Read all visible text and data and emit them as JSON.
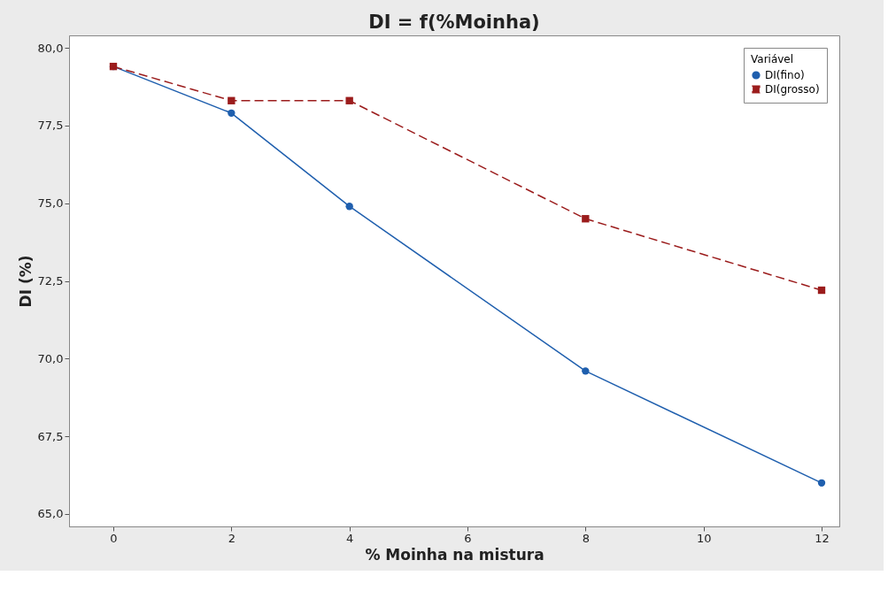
{
  "chart_data": {
    "type": "line",
    "title": "DI = f(%Moinha)",
    "xlabel": "% Moinha na mistura",
    "ylabel": "DI (%)",
    "legend_title": "Variável",
    "x": [
      0,
      2,
      4,
      8,
      12
    ],
    "series": [
      {
        "name": "DI(fino)",
        "color": "#1f5fae",
        "values": [
          79.4,
          77.9,
          74.9,
          69.6,
          66.0
        ],
        "marker": "circle",
        "line_style": "solid"
      },
      {
        "name": "DI(grosso)",
        "color": "#9b1c1c",
        "values": [
          79.4,
          78.3,
          78.3,
          74.5,
          72.2
        ],
        "marker": "square",
        "line_style": "dashed"
      }
    ],
    "xlim": [
      -0.75,
      12.3
    ],
    "xticks": [
      0,
      2,
      4,
      6,
      8,
      10,
      12
    ],
    "ylim": [
      64.6,
      80.4
    ],
    "yticks": [
      {
        "value": 65,
        "label": "65,0"
      },
      {
        "value": 67.5,
        "label": "67,5"
      },
      {
        "value": 70,
        "label": "70,0"
      },
      {
        "value": 72.5,
        "label": "72,5"
      },
      {
        "value": 75,
        "label": "75,0"
      },
      {
        "value": 77.5,
        "label": "77,5"
      },
      {
        "value": 80,
        "label": "80,0"
      }
    ],
    "legend": "top right",
    "grid": false
  }
}
